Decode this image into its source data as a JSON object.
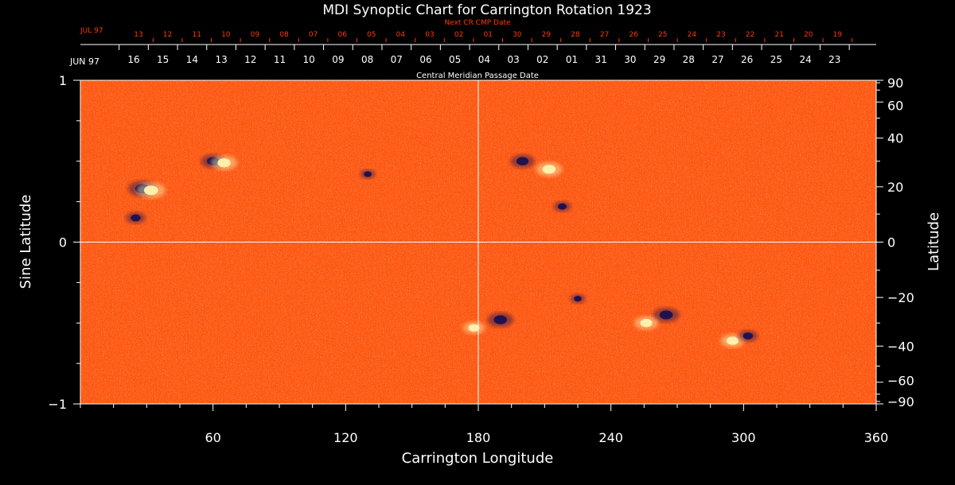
{
  "chart_data": {
    "type": "heatmap",
    "title": "MDI Synoptic Chart for Carrington Rotation 1923",
    "xlabel": "Carrington Longitude",
    "ylabel_left": "Sine Latitude",
    "ylabel_right": "Latitude",
    "xlim": [
      0,
      360
    ],
    "ylim": [
      -1,
      1
    ],
    "x_ticks": [
      60,
      120,
      180,
      240,
      300,
      360
    ],
    "y_ticks_left": [
      -1,
      0,
      1
    ],
    "y_ticks_right_deg": [
      90,
      60,
      40,
      20,
      0,
      -20,
      -40,
      -60,
      -90
    ],
    "crosshair": {
      "longitude": 180,
      "sine_latitude": 0
    },
    "cmp_axis": {
      "label": "Central Meridian Passage Date",
      "month_label": "JUN 97",
      "dates": [
        "16",
        "15",
        "14",
        "13",
        "12",
        "11",
        "10",
        "09",
        "08",
        "07",
        "06",
        "05",
        "04",
        "03",
        "02",
        "01",
        "31",
        "30",
        "29",
        "28",
        "27",
        "26",
        "25",
        "24",
        "23"
      ]
    },
    "next_cr_axis": {
      "label": "Next CR CMP Date",
      "month_label": "JUL 97",
      "dates": [
        "13",
        "12",
        "11",
        "10",
        "09",
        "08",
        "07",
        "06",
        "05",
        "04",
        "03",
        "02",
        "01",
        "30",
        "29",
        "28",
        "27",
        "26",
        "25",
        "24",
        "23",
        "22",
        "21",
        "20",
        "19"
      ]
    },
    "colors": {
      "background": "#000000",
      "field": "#ff5a14",
      "positive_polarity": "#fff4b0",
      "negative_polarity": "#1a1050",
      "grid": "#ffffff",
      "next_cr_axis": "#ff3a00",
      "axis": "#ffffff"
    },
    "active_regions": [
      {
        "lon": 28,
        "sinlat": 0.33,
        "polarity": "negative",
        "strength": 1.0
      },
      {
        "lon": 32,
        "sinlat": 0.32,
        "polarity": "positive",
        "strength": 1.0
      },
      {
        "lon": 25,
        "sinlat": 0.15,
        "polarity": "negative",
        "strength": 0.6
      },
      {
        "lon": 60,
        "sinlat": 0.5,
        "polarity": "negative",
        "strength": 0.8
      },
      {
        "lon": 65,
        "sinlat": 0.49,
        "polarity": "positive",
        "strength": 0.9
      },
      {
        "lon": 200,
        "sinlat": 0.5,
        "polarity": "negative",
        "strength": 0.8
      },
      {
        "lon": 212,
        "sinlat": 0.45,
        "polarity": "positive",
        "strength": 0.9
      },
      {
        "lon": 218,
        "sinlat": 0.22,
        "polarity": "negative",
        "strength": 0.5
      },
      {
        "lon": 190,
        "sinlat": -0.48,
        "polarity": "negative",
        "strength": 0.9
      },
      {
        "lon": 178,
        "sinlat": -0.53,
        "polarity": "positive",
        "strength": 0.7
      },
      {
        "lon": 265,
        "sinlat": -0.45,
        "polarity": "negative",
        "strength": 0.9
      },
      {
        "lon": 256,
        "sinlat": -0.5,
        "polarity": "positive",
        "strength": 0.8
      },
      {
        "lon": 295,
        "sinlat": -0.61,
        "polarity": "positive",
        "strength": 0.8
      },
      {
        "lon": 302,
        "sinlat": -0.58,
        "polarity": "negative",
        "strength": 0.6
      },
      {
        "lon": 225,
        "sinlat": -0.35,
        "polarity": "negative",
        "strength": 0.4
      },
      {
        "lon": 130,
        "sinlat": 0.42,
        "polarity": "negative",
        "strength": 0.4
      }
    ]
  }
}
